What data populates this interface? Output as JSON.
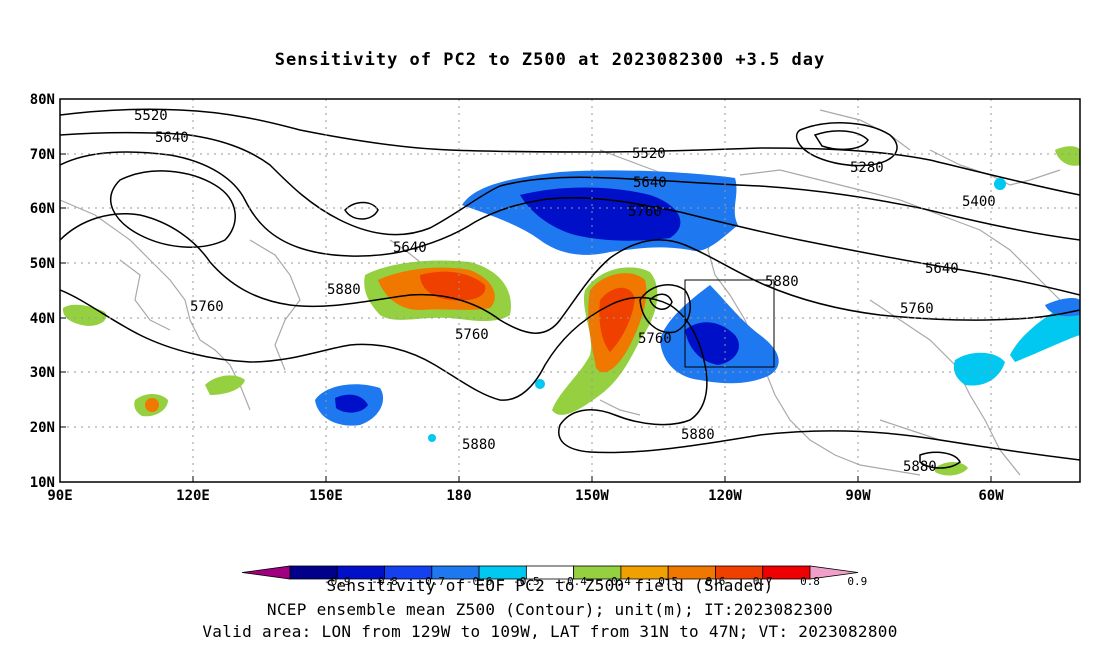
{
  "title": "Sensitivity of PC2 to Z500 at 2023082300 +3.5 day",
  "map": {
    "lat_labels": [
      "80N",
      "70N",
      "60N",
      "50N",
      "40N",
      "30N",
      "20N",
      "10N"
    ],
    "lon_labels": [
      "90E",
      "120E",
      "150E",
      "180",
      "150W",
      "120W",
      "90W",
      "60W"
    ],
    "valid_area_box": {
      "lon_from": "129W",
      "lon_to": "109W",
      "lat_from": "31N",
      "lat_to": "47N"
    },
    "contour_labels": [
      "5520",
      "5640",
      "5280",
      "5400",
      "5640",
      "5760",
      "5640",
      "5760",
      "5880",
      "5760",
      "5880",
      "5760",
      "5880",
      "5880",
      "5880",
      "5520",
      "5640",
      "5760"
    ]
  },
  "colorbar": {
    "tick_labels": [
      "-0.9",
      "-0.8",
      "-0.7",
      "-0.6",
      "-0.5",
      "-0.4",
      "0.4",
      "0.5",
      "0.6",
      "0.7",
      "0.8",
      "0.9"
    ],
    "colors": [
      "#a0007f",
      "#00008b",
      "#0010c8",
      "#1440f0",
      "#1e78f0",
      "#00c8f0",
      "#ffffff",
      "#94d040",
      "#f0a000",
      "#f07800",
      "#f04000",
      "#f00000",
      "#f0a0c8"
    ]
  },
  "captions": {
    "line1": "Sensitivity of EOF PC2 to Z500 field (Shaded)",
    "line2": "NCEP ensemble mean Z500 (Contour); unit(m); IT:2023082300",
    "line3": "Valid area: LON from 129W to 109W, LAT from 31N to 47N; VT: 2023082800"
  }
}
